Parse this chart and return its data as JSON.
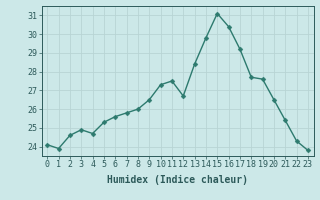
{
  "x": [
    0,
    1,
    2,
    3,
    4,
    5,
    6,
    7,
    8,
    9,
    10,
    11,
    12,
    13,
    14,
    15,
    16,
    17,
    18,
    19,
    20,
    21,
    22,
    23
  ],
  "y": [
    24.1,
    23.9,
    24.6,
    24.9,
    24.7,
    25.3,
    25.6,
    25.8,
    26.0,
    26.5,
    27.3,
    27.5,
    26.7,
    28.4,
    29.8,
    31.1,
    30.4,
    29.2,
    27.7,
    27.6,
    26.5,
    25.4,
    24.3,
    23.8
  ],
  "line_color": "#2d7a6e",
  "marker_color": "#2d7a6e",
  "bg_color": "#cce8e8",
  "grid_color": "#b8d4d4",
  "xlabel": "Humidex (Indice chaleur)",
  "ylim": [
    23.5,
    31.5
  ],
  "yticks": [
    24,
    25,
    26,
    27,
    28,
    29,
    30,
    31
  ],
  "xticks": [
    0,
    1,
    2,
    3,
    4,
    5,
    6,
    7,
    8,
    9,
    10,
    11,
    12,
    13,
    14,
    15,
    16,
    17,
    18,
    19,
    20,
    21,
    22,
    23
  ],
  "font_color": "#2d5a5a",
  "xlabel_fontsize": 7.0,
  "tick_fontsize": 6.0,
  "marker_size": 2.5,
  "line_width": 1.0
}
